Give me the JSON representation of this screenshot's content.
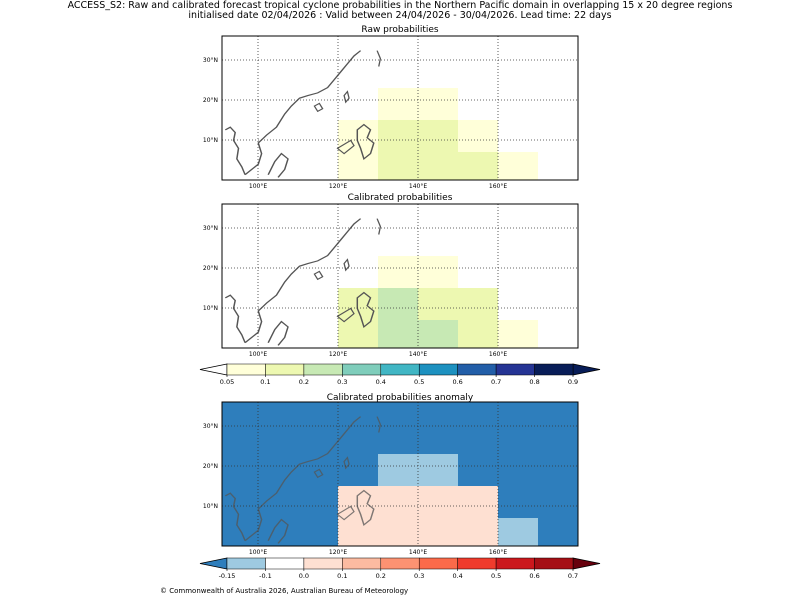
{
  "header": {
    "title_line1": "ACCESS_S2: Raw and calibrated forecast tropical cyclone probabilities in the Northern Pacific domain in overlapping 15 x 20 degree regions",
    "title_line2": "initialised date 02/04/2026 :  Valid between 24/04/2026 - 30/04/2026. Lead time: 22 days"
  },
  "footer": {
    "text": "© Commonwealth of Australia 2026, Australian Bureau of Meteorology"
  },
  "chart_data": [
    {
      "type": "heatmap",
      "title": "Raw probabilities",
      "x_range": [
        91,
        180
      ],
      "y_range": [
        0,
        36
      ],
      "x_ticks": [
        100,
        120,
        140,
        160
      ],
      "x_tick_labels": [
        "100°E",
        "120°E",
        "140°E",
        "160°E"
      ],
      "y_ticks": [
        10,
        20,
        30
      ],
      "y_tick_labels": [
        "10°N",
        "20°N",
        "30°N"
      ],
      "grid": true,
      "background": "#ffffff",
      "cells": [
        {
          "lon": [
            130,
            150
          ],
          "lat": [
            15,
            23
          ],
          "value": 0.07
        },
        {
          "lon": [
            120,
            130
          ],
          "lat": [
            0,
            15
          ],
          "value": 0.07
        },
        {
          "lon": [
            130,
            150
          ],
          "lat": [
            0,
            15
          ],
          "value": 0.13
        },
        {
          "lon": [
            150,
            160
          ],
          "lat": [
            7,
            15
          ],
          "value": 0.07
        },
        {
          "lon": [
            150,
            160
          ],
          "lat": [
            0,
            7
          ],
          "value": 0.13
        },
        {
          "lon": [
            160,
            170
          ],
          "lat": [
            0,
            7
          ],
          "value": 0.07
        }
      ]
    },
    {
      "type": "heatmap",
      "title": "Calibrated probabilities",
      "x_range": [
        91,
        180
      ],
      "y_range": [
        0,
        36
      ],
      "x_ticks": [
        100,
        120,
        140,
        160
      ],
      "x_tick_labels": [
        "100°E",
        "120°E",
        "140°E",
        "160°E"
      ],
      "y_ticks": [
        10,
        20,
        30
      ],
      "y_tick_labels": [
        "10°N",
        "20°N",
        "30°N"
      ],
      "grid": true,
      "background": "#ffffff",
      "cells": [
        {
          "lon": [
            130,
            150
          ],
          "lat": [
            15,
            23
          ],
          "value": 0.07
        },
        {
          "lon": [
            120,
            130
          ],
          "lat": [
            0,
            15
          ],
          "value": 0.13
        },
        {
          "lon": [
            130,
            140
          ],
          "lat": [
            0,
            15
          ],
          "value": 0.25
        },
        {
          "lon": [
            140,
            150
          ],
          "lat": [
            7,
            15
          ],
          "value": 0.13
        },
        {
          "lon": [
            140,
            150
          ],
          "lat": [
            0,
            7
          ],
          "value": 0.25
        },
        {
          "lon": [
            150,
            160
          ],
          "lat": [
            0,
            15
          ],
          "value": 0.13
        },
        {
          "lon": [
            160,
            170
          ],
          "lat": [
            0,
            7
          ],
          "value": 0.07
        }
      ]
    },
    {
      "type": "heatmap",
      "title": "Calibrated probabilities anomaly",
      "x_range": [
        91,
        180
      ],
      "y_range": [
        0,
        36
      ],
      "x_ticks": [
        100,
        120,
        140,
        160
      ],
      "x_tick_labels": [
        "100°E",
        "120°E",
        "140°E",
        "160°E"
      ],
      "y_ticks": [
        10,
        20,
        30
      ],
      "y_tick_labels": [
        "10°N",
        "20°N",
        "30°N"
      ],
      "grid": true,
      "background": "#2e7ebc",
      "cells": [
        {
          "lon": [
            130,
            150
          ],
          "lat": [
            15,
            23
          ],
          "value": -0.12
        },
        {
          "lon": [
            120,
            130
          ],
          "lat": [
            0,
            15
          ],
          "value": 0.03
        },
        {
          "lon": [
            130,
            140
          ],
          "lat": [
            0,
            15
          ],
          "value": 0.05
        },
        {
          "lon": [
            140,
            150
          ],
          "lat": [
            7,
            15
          ],
          "value": 0.03
        },
        {
          "lon": [
            140,
            150
          ],
          "lat": [
            0,
            7
          ],
          "value": 0.05
        },
        {
          "lon": [
            150,
            160
          ],
          "lat": [
            0,
            15
          ],
          "value": 0.03
        },
        {
          "lon": [
            160,
            170
          ],
          "lat": [
            0,
            7
          ],
          "value": -0.12
        }
      ]
    }
  ],
  "colorbars": [
    {
      "name": "probability",
      "ticks": [
        "0.05",
        "0.1",
        "0.2",
        "0.3",
        "0.4",
        "0.5",
        "0.6",
        "0.7",
        "0.8",
        "0.9"
      ],
      "bounds": [
        0.05,
        0.1,
        0.2,
        0.3,
        0.4,
        0.5,
        0.6,
        0.7,
        0.8,
        0.9
      ],
      "under_color": "#ffffff",
      "over_color": "#081d58",
      "colors": [
        "#ffffd9",
        "#edf8b1",
        "#c7e9b4",
        "#7fcdbb",
        "#41b6c4",
        "#1d91c0",
        "#225ea8",
        "#253494",
        "#081d58"
      ]
    },
    {
      "name": "anomaly",
      "ticks": [
        "-0.15",
        "-0.1",
        "0.0",
        "0.1",
        "0.2",
        "0.3",
        "0.4",
        "0.5",
        "0.6",
        "0.7"
      ],
      "bounds": [
        -0.15,
        -0.1,
        0.0,
        0.1,
        0.2,
        0.3,
        0.4,
        0.5,
        0.6,
        0.7
      ],
      "under_color": "#2e7ebc",
      "over_color": "#67000d",
      "colors": [
        "#9ecae1",
        "#ffffff",
        "#fee0d2",
        "#fcbba1",
        "#fc9272",
        "#fb6a4a",
        "#ef3b2c",
        "#cb181d",
        "#a50f15"
      ]
    }
  ]
}
